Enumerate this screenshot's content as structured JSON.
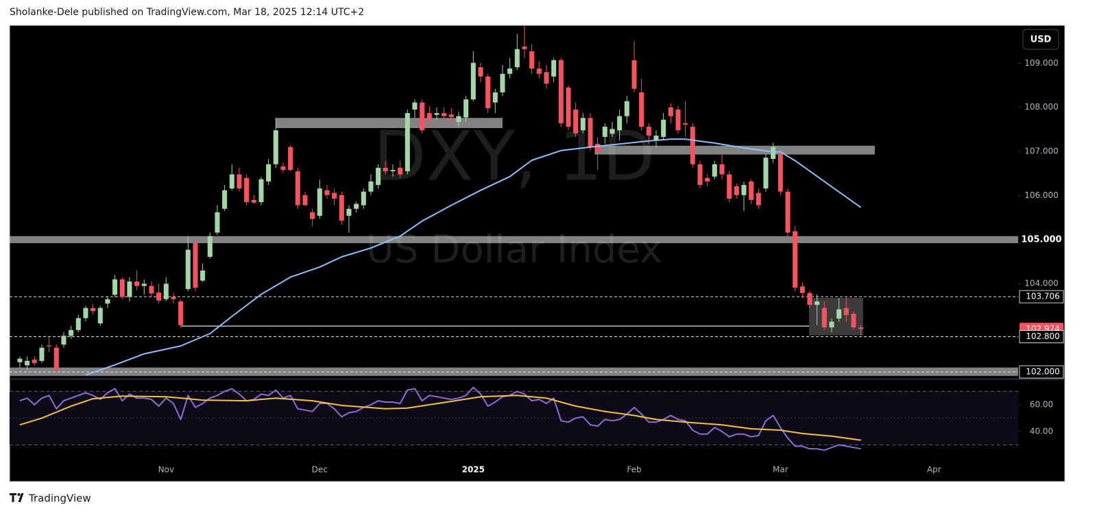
{
  "header": {
    "publisher": "Sholanke-Dele published on TradingView.com, Mar 18, 2025 12:14 UTC+2"
  },
  "footer": {
    "brand": "TradingView"
  },
  "currency_button": "USD",
  "chart_data": [
    {
      "type": "candlestick",
      "watermark": [
        "DXY, 1D",
        "US Dollar Index"
      ],
      "xlim": [
        -1.4,
        136.5
      ],
      "ylim": [
        101.86,
        109.86
      ],
      "yticks": [
        {
          "value": 104,
          "label": "104.000"
        },
        {
          "value": 106,
          "label": "106.000"
        },
        {
          "value": 107,
          "label": "107.000"
        },
        {
          "value": 108,
          "label": "108.000"
        },
        {
          "value": 109,
          "label": "109.000"
        }
      ],
      "series": [
        {
          "up_color": "#a5d6a7",
          "down_color": "#f7525f",
          "open": [
            102.22,
            102.15,
            102.28,
            102.25,
            102.6,
            102.55,
            102.62,
            102.82,
            102.95,
            103.22,
            103.45,
            103.1,
            103.55,
            103.75,
            104.1,
            103.7,
            104.05,
            103.95,
            103.95,
            103.8,
            103.65,
            103.7,
            103.6,
            103.88,
            104.92,
            104.07,
            104.61,
            105.16,
            105.7,
            106.16,
            106.48,
            106.4,
            105.9,
            105.85,
            106.32,
            106.71,
            106.66,
            107.1,
            106.55,
            106.01,
            105.62,
            105.54,
            106.12,
            106.06,
            106.01,
            105.54,
            105.7,
            105.78,
            106.09,
            106.24,
            106.63,
            106.55,
            106.63,
            106.55,
            107.95,
            108.11,
            107.87,
            107.83,
            107.87,
            107.84,
            107.67,
            107.77,
            108.18,
            108.91,
            108.7,
            108.11,
            108.34,
            108.76,
            108.91,
            109.38,
            109.27,
            108.88,
            108.8,
            108.7,
            109.07,
            108.45,
            107.95,
            107.48,
            107.76,
            107.17,
            107.33,
            107.4,
            107.48,
            107.8,
            109.07,
            108.34,
            107.56,
            107.25,
            107.33,
            108.0,
            107.95,
            107.64,
            107.56,
            106.71,
            106.4,
            106.43,
            106.71,
            106.48,
            106.21,
            106.01,
            106.32,
            106.06,
            106.16,
            106.83,
            106.94,
            106.09,
            105.19,
            103.94,
            103.79,
            103.52,
            103.45,
            103.01,
            103.21,
            103.45,
            103.32,
            103.01
          ],
          "high": [
            102.35,
            102.35,
            102.35,
            102.62,
            102.8,
            102.62,
            102.9,
            103.05,
            103.3,
            103.5,
            103.55,
            103.5,
            103.72,
            104.2,
            104.15,
            104.15,
            104.3,
            104.1,
            104.05,
            104.0,
            104.15,
            103.8,
            103.65,
            105.08,
            105.0,
            104.46,
            105.16,
            105.78,
            106.24,
            106.71,
            106.63,
            106.48,
            106.01,
            106.43,
            106.83,
            107.76,
            106.75,
            107.14,
            106.63,
            106.09,
            105.7,
            106.36,
            106.24,
            106.16,
            106.09,
            105.78,
            105.86,
            106.16,
            106.48,
            106.71,
            106.79,
            106.71,
            106.79,
            107.95,
            108.18,
            108.18,
            108.03,
            108.0,
            108.0,
            107.98,
            107.9,
            108.26,
            109.27,
            109.01,
            108.76,
            108.42,
            108.96,
            109.12,
            109.66,
            109.86,
            109.43,
            109.04,
            108.96,
            109.12,
            109.12,
            108.5,
            108.11,
            107.87,
            107.87,
            107.33,
            107.64,
            107.67,
            107.95,
            108.26,
            109.5,
            108.65,
            107.64,
            107.48,
            107.87,
            108.09,
            108.03,
            108.14,
            107.64,
            106.79,
            106.48,
            106.79,
            106.94,
            106.55,
            106.27,
            106.32,
            106.37,
            106.16,
            106.94,
            107.2,
            107.02,
            106.16,
            105.31,
            104.03,
            103.84,
            103.76,
            103.6,
            103.21,
            103.68,
            103.68,
            103.37,
            103.06
          ],
          "low": [
            102.1,
            102.05,
            102.15,
            102.2,
            102.45,
            101.98,
            102.55,
            102.75,
            102.9,
            103.15,
            103.3,
            103.05,
            103.45,
            103.7,
            103.65,
            103.6,
            103.85,
            103.75,
            103.7,
            103.55,
            103.6,
            103.55,
            103.01,
            103.83,
            103.83,
            104.04,
            104.57,
            105.11,
            105.65,
            106.12,
            106.09,
            105.78,
            105.81,
            105.78,
            106.24,
            106.63,
            106.52,
            106.55,
            105.7,
            105.78,
            105.3,
            105.47,
            105.93,
            105.78,
            105.34,
            105.16,
            105.62,
            105.7,
            106.01,
            106.16,
            106.48,
            106.43,
            106.4,
            106.48,
            107.76,
            107.41,
            107.56,
            107.72,
            107.72,
            107.64,
            107.56,
            107.67,
            108.14,
            108.57,
            107.87,
            107.87,
            108.26,
            108.66,
            108.85,
            109.12,
            108.76,
            108.66,
            108.42,
            108.57,
            107.56,
            107.48,
            107.33,
            107.41,
            107.02,
            106.58,
            107.17,
            107.33,
            107.25,
            107.64,
            108.34,
            107.48,
            107.17,
            107.1,
            107.25,
            107.64,
            107.41,
            107.33,
            106.63,
            106.16,
            106.21,
            106.37,
            106.37,
            105.85,
            105.93,
            105.65,
            105.81,
            105.7,
            106.09,
            106.74,
            106.01,
            105.08,
            103.83,
            103.68,
            103.45,
            103.06,
            102.95,
            102.9,
            103.14,
            103.14,
            102.95,
            102.83
          ],
          "close": [
            102.3,
            102.25,
            102.2,
            102.55,
            102.58,
            102.05,
            102.82,
            102.95,
            103.22,
            103.45,
            103.38,
            103.45,
            103.65,
            104.1,
            103.7,
            104.05,
            103.95,
            104.0,
            103.78,
            103.62,
            104.0,
            103.65,
            103.06,
            104.77,
            103.91,
            104.3,
            105.08,
            105.62,
            106.12,
            106.48,
            106.16,
            105.85,
            105.84,
            106.37,
            106.71,
            107.48,
            106.58,
            106.58,
            105.78,
            105.78,
            105.47,
            106.16,
            106.01,
            105.93,
            105.43,
            105.7,
            105.81,
            106.09,
            106.32,
            106.63,
            106.55,
            106.58,
            106.48,
            107.87,
            108.11,
            107.48,
            107.72,
            107.87,
            107.8,
            107.78,
            107.8,
            108.18,
            109.01,
            108.7,
            107.98,
            108.34,
            108.76,
            108.88,
            109.32,
            109.32,
            108.88,
            108.76,
            108.54,
            109.07,
            107.64,
            107.56,
            107.41,
            107.76,
            107.1,
            106.99,
            107.56,
            107.51,
            107.8,
            108.14,
            108.42,
            107.56,
            107.36,
            107.36,
            107.72,
            107.8,
            107.48,
            107.61,
            106.71,
            106.24,
            106.32,
            106.71,
            106.48,
            105.93,
            106.01,
            106.24,
            105.9,
            105.78,
            106.86,
            107.1,
            106.09,
            105.16,
            103.91,
            103.79,
            103.52,
            103.6,
            103.01,
            103.14,
            103.42,
            103.29,
            103.01,
            102.974
          ]
        }
      ],
      "moving_average": {
        "color": "#90bff9",
        "x": [
          9,
          13,
          17,
          22,
          26,
          29,
          33,
          37,
          41,
          44,
          48,
          52,
          55,
          59,
          63,
          67,
          70,
          74,
          78,
          82,
          86,
          89,
          91,
          95,
          99,
          103,
          104,
          106,
          110,
          115
        ],
        "values": [
          101.93,
          102.16,
          102.41,
          102.59,
          102.87,
          103.26,
          103.76,
          104.15,
          104.38,
          104.61,
          104.81,
          105.08,
          105.42,
          105.78,
          106.12,
          106.43,
          106.8,
          107.02,
          107.1,
          107.17,
          107.24,
          107.28,
          107.28,
          107.19,
          107.08,
          106.99,
          106.99,
          106.79,
          106.32,
          105.73
        ]
      },
      "zones": [
        {
          "from": 107.53,
          "to": 107.76,
          "start": 35,
          "end": 66
        },
        {
          "from": 106.93,
          "to": 107.13,
          "start": 78.6,
          "end": 116.9
        },
        {
          "from": 104.92,
          "to": 105.08
        },
        {
          "from": 101.91,
          "to": 102.1
        }
      ],
      "range_box": {
        "from": 102.83,
        "to": 103.68,
        "start": 107.9,
        "end": 115.3
      },
      "trend_line": {
        "value": 103.04,
        "start": 22,
        "end": 107.9
      },
      "levels": [
        {
          "value": 105,
          "label": "105.000",
          "style": "band"
        },
        {
          "value": 103.706,
          "label": "103.706",
          "style": "dashed"
        },
        {
          "value": 102.8,
          "label": "102.800",
          "style": "dashed"
        },
        {
          "value": 102,
          "label": "102.000",
          "style": "dashed"
        }
      ]
    },
    {
      "type": "line",
      "xlim": [
        -1.4,
        136.5
      ],
      "ylim": [
        16.9,
        77.9
      ],
      "yticks": [
        {
          "value": 40,
          "label": "40.00"
        },
        {
          "value": 60,
          "label": "60.00"
        }
      ],
      "band_lower": 30,
      "band_upper": 70,
      "midline": 50,
      "xticks": [
        {
          "value": 20,
          "label": "Nov"
        },
        {
          "value": 41,
          "label": "Dec"
        },
        {
          "value": 62,
          "label": "2025"
        },
        {
          "value": 84,
          "label": "Feb"
        },
        {
          "value": 104,
          "label": "Mar"
        },
        {
          "value": 125,
          "label": "Apr"
        }
      ],
      "series": [
        {
          "color": "#8e6fd6",
          "values": [
            63,
            65,
            60,
            65,
            67,
            57,
            63,
            65,
            67,
            69,
            67,
            64,
            69,
            72,
            63,
            68,
            65,
            65,
            64,
            59,
            65,
            61,
            49,
            67,
            58,
            61,
            65,
            67,
            70,
            72,
            68,
            63,
            64,
            68,
            67,
            71,
            65,
            67,
            57,
            56,
            55,
            61,
            61,
            57,
            51,
            54,
            55,
            58,
            60,
            63,
            62,
            62,
            61,
            71,
            72,
            63,
            67,
            66,
            65,
            64,
            65,
            67,
            73,
            68,
            59,
            62,
            66,
            67,
            70,
            68,
            63,
            64,
            61,
            65,
            48,
            47,
            50,
            51,
            45,
            44,
            49,
            48,
            49,
            53,
            58,
            53,
            47,
            47,
            49,
            52,
            49,
            48,
            41,
            38,
            38,
            43,
            40,
            36,
            38,
            38,
            36,
            37,
            48,
            52,
            43,
            35,
            29,
            29,
            27,
            27,
            26,
            28,
            30,
            29,
            28,
            27
          ]
        },
        {
          "color": "#f5c242",
          "x": [
            0,
            3,
            7,
            10,
            14,
            20,
            25,
            31,
            35,
            40,
            44,
            50,
            53,
            59,
            63,
            68,
            72,
            76,
            80,
            84,
            87,
            91,
            96,
            100,
            104,
            107,
            111,
            115
          ],
          "values": [
            45,
            50,
            59,
            64.5,
            66.5,
            66,
            63.5,
            63,
            65,
            63,
            59.5,
            57,
            57.5,
            62.5,
            66,
            67,
            65,
            59,
            55,
            52,
            49,
            47,
            45,
            42,
            41,
            38.5,
            36.5,
            33.5
          ]
        }
      ]
    }
  ]
}
